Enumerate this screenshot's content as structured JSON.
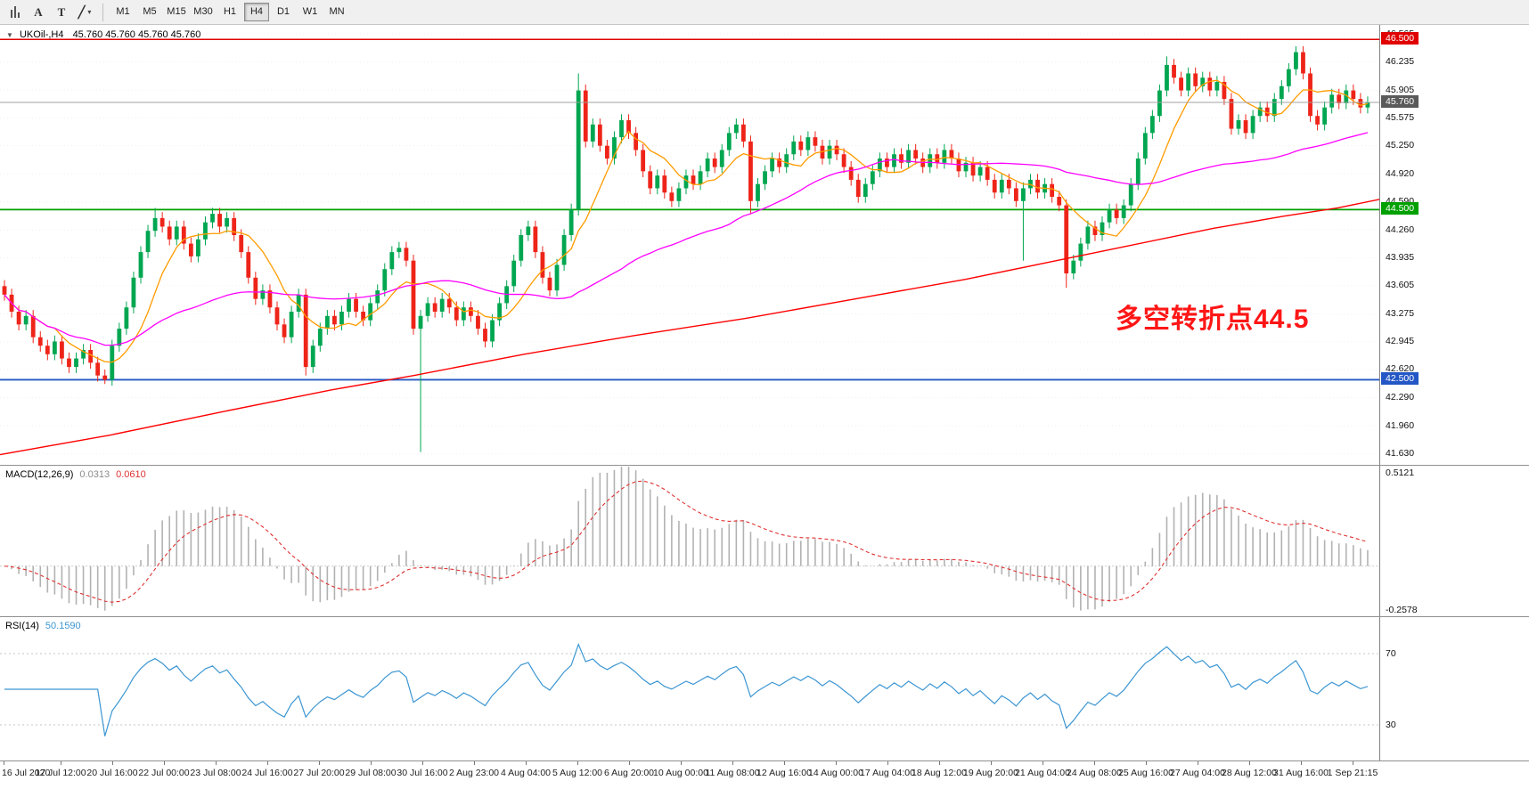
{
  "toolbar": {
    "left_icons": [
      {
        "name": "bar-chart-icon",
        "glyph": "bars"
      },
      {
        "name": "text-cursor-icon",
        "glyph": "A"
      },
      {
        "name": "text-tool-icon",
        "glyph": "T"
      },
      {
        "name": "draw-tools-icon",
        "glyph": "╱",
        "caret": "▾"
      }
    ],
    "timeframes": [
      "M1",
      "M5",
      "M15",
      "M30",
      "H1",
      "H4",
      "D1",
      "W1",
      "MN"
    ],
    "active_timeframe": "H4"
  },
  "chart": {
    "title": "UKOil-,H4",
    "ohlc_text": "45.760 45.760 45.760 45.760",
    "collapse_icon": "▼",
    "annotation": {
      "text": "多空转折点44.5",
      "color": "#ff1616"
    }
  },
  "price_axis": {
    "labels": [
      "46.565",
      "46.235",
      "45.905",
      "45.575",
      "45.250",
      "44.920",
      "44.590",
      "44.260",
      "43.935",
      "43.605",
      "43.275",
      "42.945",
      "42.620",
      "42.290",
      "41.960",
      "41.630"
    ],
    "tags": [
      {
        "value": "46.500",
        "price": 46.5,
        "bg": "#e00000"
      },
      {
        "value": "45.760",
        "price": 45.76,
        "bg": "#5a5a5a"
      },
      {
        "value": "44.500",
        "price": 44.5,
        "bg": "#00a000"
      },
      {
        "value": "42.500",
        "price": 42.5,
        "bg": "#2457c5"
      }
    ]
  },
  "levels": [
    {
      "price": 46.5,
      "color": "#e00000",
      "width": 1.6
    },
    {
      "price": 44.5,
      "color": "#00a000",
      "width": 1.8
    },
    {
      "price": 42.5,
      "color": "#2457c5",
      "width": 1.8
    },
    {
      "price": 45.76,
      "color": "#a0a0a0",
      "width": 1,
      "above": true
    }
  ],
  "chart_data": {
    "type": "candlestick",
    "symbol": "UKOil-",
    "timeframe": "H4",
    "ylim": [
      41.5,
      46.67
    ],
    "grid_step": 0.33,
    "first_open": 43.6,
    "wick_pad": 0.07,
    "closes": [
      43.5,
      43.3,
      43.15,
      43.25,
      43.0,
      42.9,
      42.8,
      42.95,
      42.75,
      42.65,
      42.75,
      42.85,
      42.7,
      42.55,
      42.5,
      42.9,
      43.1,
      43.35,
      43.7,
      44.0,
      44.25,
      44.4,
      44.3,
      44.15,
      44.3,
      44.1,
      43.95,
      44.15,
      44.35,
      44.45,
      44.3,
      44.4,
      44.2,
      44.0,
      43.7,
      43.45,
      43.55,
      43.35,
      43.15,
      43.0,
      43.3,
      43.5,
      42.65,
      42.9,
      43.1,
      43.25,
      43.15,
      43.3,
      43.45,
      43.3,
      43.2,
      43.4,
      43.55,
      43.8,
      44.0,
      44.05,
      43.9,
      43.1,
      43.25,
      43.4,
      43.3,
      43.45,
      43.35,
      43.2,
      43.35,
      43.25,
      43.1,
      42.95,
      43.2,
      43.4,
      43.6,
      43.9,
      44.2,
      44.3,
      44.0,
      43.7,
      43.55,
      43.85,
      44.2,
      44.5,
      45.9,
      45.3,
      45.5,
      45.25,
      45.1,
      45.35,
      45.55,
      45.4,
      45.2,
      44.95,
      44.75,
      44.9,
      44.7,
      44.6,
      44.75,
      44.9,
      44.8,
      44.95,
      45.1,
      45.0,
      45.2,
      45.4,
      45.5,
      45.3,
      44.6,
      44.8,
      44.95,
      45.1,
      45.0,
      45.15,
      45.3,
      45.2,
      45.35,
      45.25,
      45.1,
      45.25,
      45.15,
      45.0,
      44.85,
      44.65,
      44.8,
      44.95,
      45.1,
      45.0,
      45.15,
      45.05,
      45.2,
      45.1,
      45.0,
      45.15,
      45.05,
      45.2,
      45.1,
      44.95,
      45.05,
      44.9,
      45.0,
      44.85,
      44.7,
      44.85,
      44.75,
      44.6,
      44.75,
      44.85,
      44.7,
      44.8,
      44.65,
      44.55,
      43.75,
      43.9,
      44.1,
      44.3,
      44.2,
      44.35,
      44.5,
      44.4,
      44.55,
      44.8,
      45.1,
      45.4,
      45.6,
      45.9,
      46.2,
      46.05,
      45.9,
      46.1,
      45.95,
      46.05,
      45.9,
      46.0,
      45.8,
      45.45,
      45.55,
      45.4,
      45.6,
      45.7,
      45.6,
      45.8,
      45.95,
      46.15,
      46.35,
      46.1,
      45.6,
      45.5,
      45.7,
      45.85,
      45.75,
      45.9,
      45.8,
      45.7,
      45.76
    ],
    "wick_overrides": {
      "14": {
        "l": 42.45
      },
      "21": {
        "h": 44.52
      },
      "29": {
        "h": 44.52
      },
      "42": {
        "l": 42.55
      },
      "58": {
        "l": 41.65
      },
      "80": {
        "h": 46.1
      },
      "104": {
        "l": 44.45
      },
      "142": {
        "l": 43.9
      },
      "148": {
        "l": 43.58
      },
      "162": {
        "h": 46.3
      },
      "180": {
        "h": 46.42
      }
    },
    "up_color": "#00a650",
    "down_color": "#ee2419",
    "ma_fast": {
      "period": 8,
      "color": "#ff9c00"
    },
    "ma_mid": {
      "period": 45,
      "color": "#ff00ff"
    },
    "ma_slow": {
      "color": "#ff0000",
      "points": [
        [
          0.0,
          41.62
        ],
        [
          0.08,
          41.85
        ],
        [
          0.16,
          42.12
        ],
        [
          0.24,
          42.38
        ],
        [
          0.3,
          42.55
        ],
        [
          0.38,
          42.8
        ],
        [
          0.46,
          43.02
        ],
        [
          0.54,
          43.22
        ],
        [
          0.62,
          43.45
        ],
        [
          0.7,
          43.68
        ],
        [
          0.76,
          43.88
        ],
        [
          0.82,
          44.08
        ],
        [
          0.88,
          44.28
        ],
        [
          0.93,
          44.42
        ],
        [
          0.97,
          44.52
        ],
        [
          1.0,
          44.62
        ]
      ]
    },
    "macd": {
      "label": "MACD(12,26,9)",
      "value_main": "0.0313",
      "value_signal": "0.0610",
      "fast": 12,
      "slow": 26,
      "signal": 9,
      "ylim": [
        -0.2578,
        0.5121
      ],
      "axis_labels": [
        {
          "value": "0.5121",
          "at": 0.5121
        },
        {
          "value": "-0.2578",
          "at": -0.2578
        }
      ],
      "hist_color": "#b2b2b2",
      "signal_color": "#e03131"
    },
    "rsi": {
      "label": "RSI(14)",
      "value": "50.1590",
      "period": 14,
      "levels": [
        70,
        30
      ],
      "ylim": [
        10,
        90
      ],
      "line_color": "#3c96d2"
    }
  },
  "time_axis": {
    "labels": [
      "16 Jul 2020",
      "17 Jul 12:00",
      "20 Jul 16:00",
      "22 Jul 00:00",
      "23 Jul 08:00",
      "24 Jul 16:00",
      "27 Jul 20:00",
      "29 Jul 08:00",
      "30 Jul 16:00",
      "2 Aug 23:00",
      "4 Aug 04:00",
      "5 Aug 12:00",
      "6 Aug 20:00",
      "10 Aug 00:00",
      "11 Aug 08:00",
      "12 Aug 16:00",
      "14 Aug 00:00",
      "17 Aug 04:00",
      "18 Aug 12:00",
      "19 Aug 20:00",
      "21 Aug 04:00",
      "24 Aug 08:00",
      "25 Aug 16:00",
      "27 Aug 04:00",
      "28 Aug 12:00",
      "31 Aug 16:00",
      "1 Sep 21:15"
    ]
  }
}
